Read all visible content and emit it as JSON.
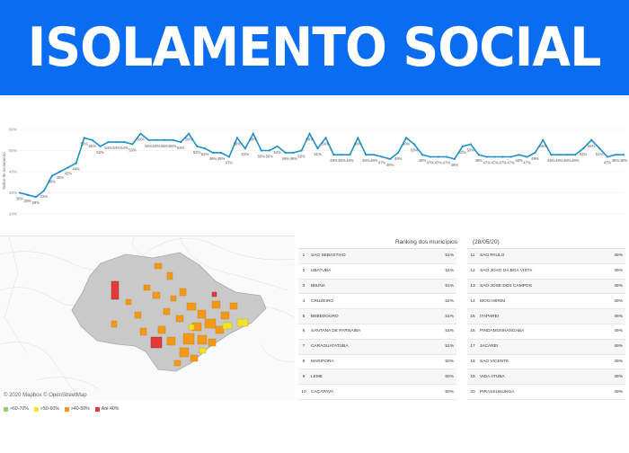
{
  "banner": {
    "title": "ISOLAMENTO SOCIAL",
    "bg_color": "#0a6cf0"
  },
  "chart_data": {
    "type": "line",
    "ylabel": "Índice de isolamento",
    "ylim": [
      20,
      60
    ],
    "y_ticks": [
      "20%",
      "30%",
      "40%",
      "50%",
      "60%"
    ],
    "values": [
      30,
      29,
      28,
      31,
      38,
      40,
      42,
      44,
      56,
      55,
      52,
      54,
      54,
      54,
      53,
      58,
      55,
      55,
      55,
      55,
      54,
      58,
      52,
      51,
      49,
      49,
      47,
      56,
      51,
      58,
      50,
      50,
      52,
      49,
      49,
      50,
      58,
      51,
      56,
      48,
      48,
      48,
      56,
      48,
      48,
      47,
      46,
      49,
      56,
      53,
      48,
      47,
      47,
      47,
      46,
      52,
      53,
      48,
      47,
      47,
      47,
      47,
      48,
      47,
      49,
      55,
      48,
      48,
      48,
      48,
      51,
      55,
      51,
      47,
      48,
      48
    ],
    "line_color": "#1e8fc8"
  },
  "map": {
    "attribution": "© 2020 Mapbox © OpenStreetMap"
  },
  "ranking": {
    "title": "Ranking dos municípios",
    "date": "(28/05/20)",
    "left": [
      {
        "n": "1",
        "city": "SÃO SEBASTIÃO",
        "pct": "51%"
      },
      {
        "n": "2",
        "city": "UBATUBA",
        "pct": "51%"
      },
      {
        "n": "3",
        "city": "IBIÚNA",
        "pct": "51%"
      },
      {
        "n": "4",
        "city": "CRUZEIRO",
        "pct": "52%"
      },
      {
        "n": "5",
        "city": "BEBEDOURO",
        "pct": "51%"
      },
      {
        "n": "6",
        "city": "SANTANA DE PARNAÍBA",
        "pct": "51%"
      },
      {
        "n": "7",
        "city": "CARAGUATATUBA",
        "pct": "51%"
      },
      {
        "n": "8",
        "city": "MARIPORÃ",
        "pct": "50%"
      },
      {
        "n": "9",
        "city": "LEME",
        "pct": "50%"
      },
      {
        "n": "10",
        "city": "CAÇAPAVA",
        "pct": "50%"
      }
    ],
    "right": [
      {
        "n": "11",
        "city": "SÃO PAULO",
        "pct": "49%"
      },
      {
        "n": "12",
        "city": "SÃO JOÃO DA BOA VISTA",
        "pct": "49%"
      },
      {
        "n": "13",
        "city": "SÃO JOSÉ DOS CAMPOS",
        "pct": "49%"
      },
      {
        "n": "14",
        "city": "MOGI MIRIM",
        "pct": "49%"
      },
      {
        "n": "15",
        "city": "ITAPAREÍ",
        "pct": "49%"
      },
      {
        "n": "16",
        "city": "PINDAMONHANGABA",
        "pct": "49%"
      },
      {
        "n": "17",
        "city": "JACAREÍ",
        "pct": "49%"
      },
      {
        "n": "18",
        "city": "SÃO VICENTE",
        "pct": "49%"
      },
      {
        "n": "19",
        "city": "VIDA ATUBA",
        "pct": "49%"
      },
      {
        "n": "20",
        "city": "PIRASSUNUNGA",
        "pct": "49%"
      }
    ]
  },
  "legend": [
    {
      "label": ">60-70%",
      "color": "#8bd36e"
    },
    {
      "label": ">50-60%",
      "color": "#f0e32a"
    },
    {
      "label": ">40-50%",
      "color": "#f29a18"
    },
    {
      "label": "Até 40%",
      "color": "#e03a3a"
    }
  ]
}
